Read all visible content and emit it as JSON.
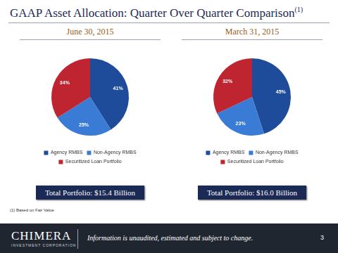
{
  "title": "GAAP Asset Allocation: Quarter Over Quarter Comparison",
  "title_note": "(1)",
  "footnote": "(1) Based on Fair Value",
  "footer": {
    "logo": "CHIMERA",
    "logo_sub": "INVESTMENT CORPORATION",
    "text": "Information is unaudited, estimated and subject to change.",
    "page": "3"
  },
  "chart_data": [
    {
      "type": "pie",
      "title": "June 30, 2015",
      "annotation": "Total Portfolio: $15.4 Billion",
      "categories": [
        "Agency RMBS",
        "Non-Agency RMBS",
        "Securitized Loan Portfolio"
      ],
      "values": [
        41,
        25,
        34
      ],
      "value_labels": [
        "41%",
        "25%",
        "34%"
      ],
      "colors": [
        "#1f4b9b",
        "#3a7bd5",
        "#bf2530"
      ],
      "data_labels": true,
      "legend": "bottom"
    },
    {
      "type": "pie",
      "title": "March 31, 2015",
      "annotation": "Total Portfolio: $16.0 Billion",
      "categories": [
        "Agency RMBS",
        "Non-Agency RMBS",
        "Securitized Loan Portfolio"
      ],
      "values": [
        45,
        23,
        32
      ],
      "value_labels": [
        "45%",
        "23%",
        "32%"
      ],
      "colors": [
        "#1f4b9b",
        "#3a7bd5",
        "#bf2530"
      ],
      "data_labels": true,
      "legend": "bottom"
    }
  ]
}
